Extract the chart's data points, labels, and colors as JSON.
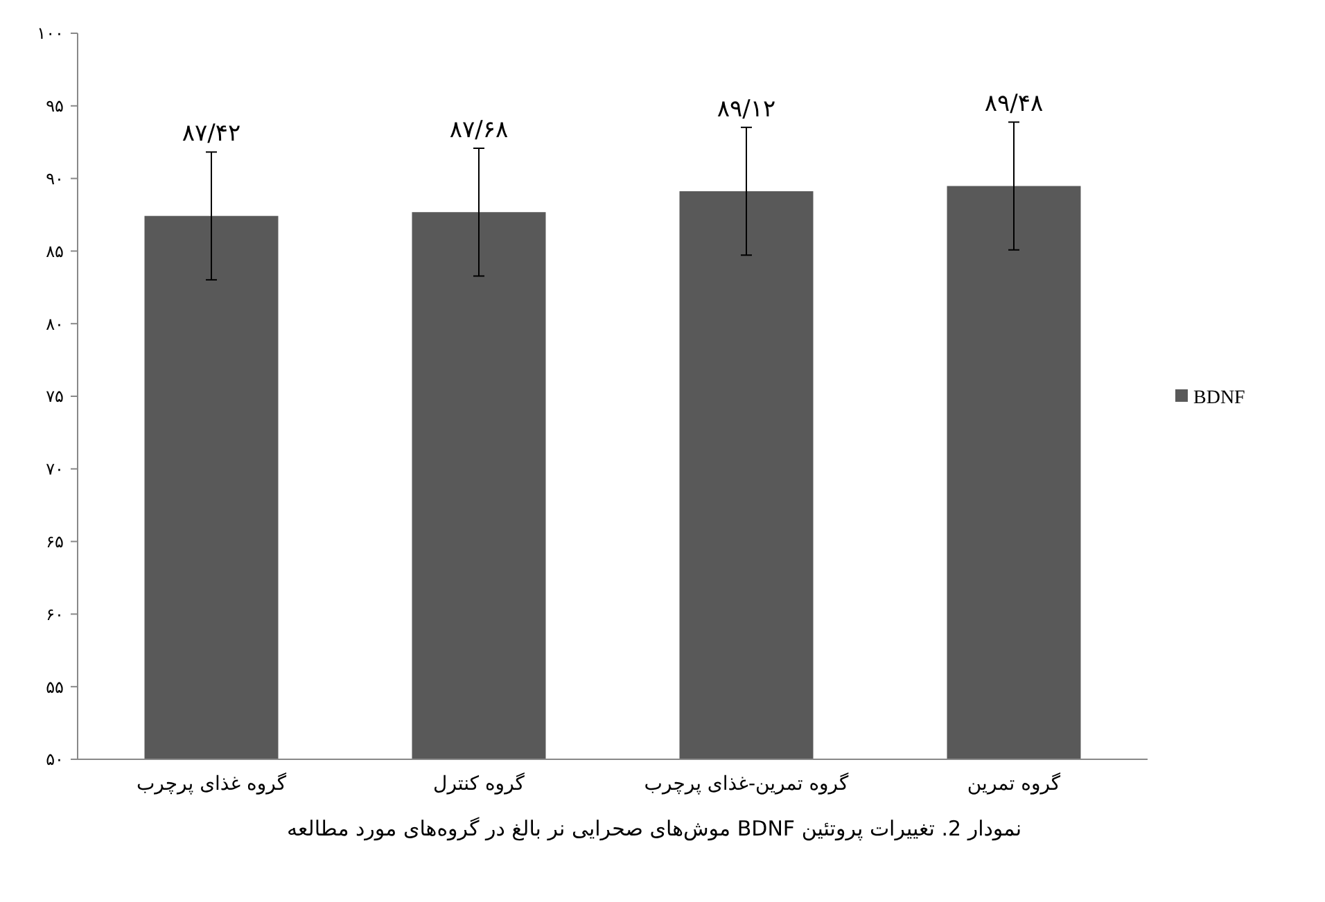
{
  "chart_data": {
    "type": "bar",
    "title": "نمودار 2. تغییرات پروتئین BDNF موش‌های صحرایی نر بالغ در گروه‌های مورد مطالعه",
    "categories": [
      "گروه غذای پرچرب",
      "گروه کنترل",
      "گروه تمرین-غذای پرچرب",
      "گروه تمرین"
    ],
    "series": [
      {
        "name": "BDNF",
        "color": "#595959",
        "values": [
          87.42,
          87.68,
          89.12,
          89.48
        ],
        "errors": [
          4.4,
          4.4,
          4.4,
          4.4
        ],
        "value_labels": [
          "۸۷/۴۲",
          "۸۷/۶۸",
          "۸۹/۱۲",
          "۸۹/۴۸"
        ]
      }
    ],
    "ylim": [
      50,
      100
    ],
    "yticks": [
      {
        "value": 50,
        "label": "۵۰"
      },
      {
        "value": 55,
        "label": "۵۵"
      },
      {
        "value": 60,
        "label": "۶۰"
      },
      {
        "value": 65,
        "label": "۶۵"
      },
      {
        "value": 70,
        "label": "۷۰"
      },
      {
        "value": 75,
        "label": "۷۵"
      },
      {
        "value": 80,
        "label": "۸۰"
      },
      {
        "value": 85,
        "label": "۸۵"
      },
      {
        "value": 90,
        "label": "۹۰"
      },
      {
        "value": 95,
        "label": "۹۵"
      },
      {
        "value": 100,
        "label": "۱۰۰"
      }
    ],
    "grid": false,
    "legend": "right"
  }
}
